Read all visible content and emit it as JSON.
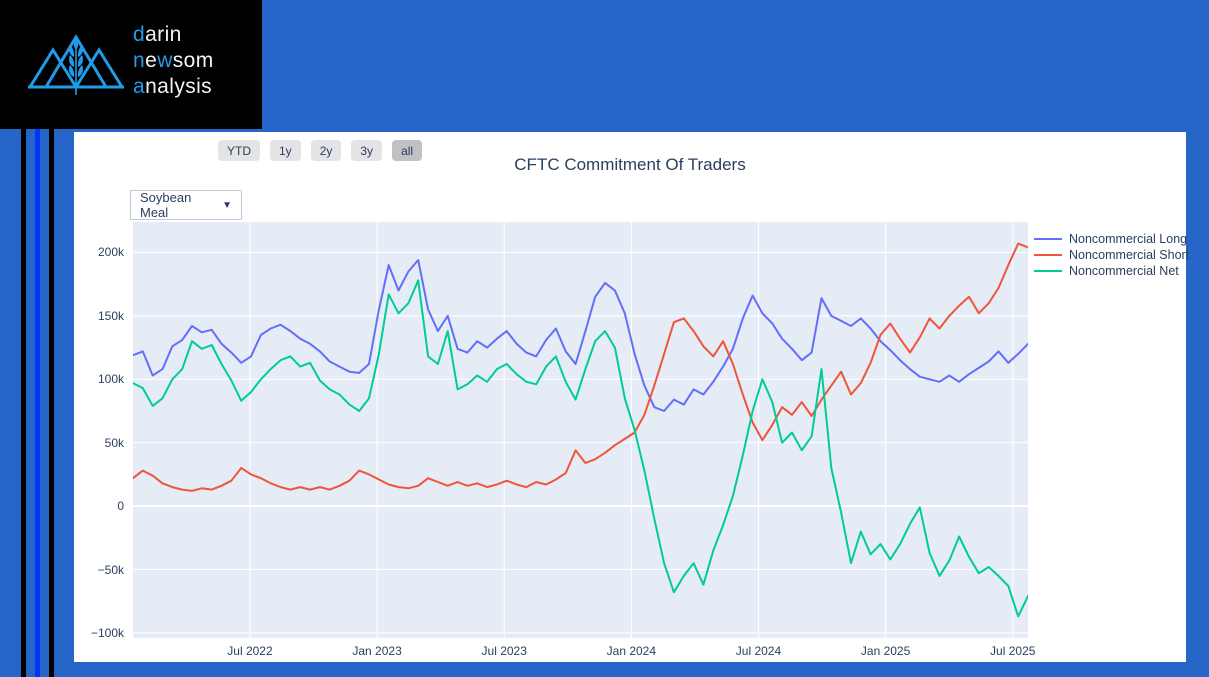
{
  "brand": {
    "accent_color": "#219CE9",
    "white_color": "#F4F4F4",
    "lines": [
      {
        "segments": [
          {
            "t": "d",
            "c": "#219CE9"
          },
          {
            "t": "arin",
            "c": "#F4F4F4"
          }
        ]
      },
      {
        "segments": [
          {
            "t": "n",
            "c": "#219CE9"
          },
          {
            "t": "e",
            "c": "#F4F4F4"
          },
          {
            "t": "w",
            "c": "#219CE9"
          },
          {
            "t": "som",
            "c": "#F4F4F4"
          }
        ]
      },
      {
        "segments": [
          {
            "t": "a",
            "c": "#219CE9"
          },
          {
            "t": "nalysis",
            "c": "#F4F4F4"
          }
        ]
      }
    ]
  },
  "layout_colors": {
    "background_blue": "#2565C8",
    "bright_stripe_blue": "#0634F4",
    "header_black": "#000000"
  },
  "toolbar": {
    "range_buttons": [
      {
        "label": "YTD",
        "selected": false
      },
      {
        "label": "1y",
        "selected": false
      },
      {
        "label": "2y",
        "selected": false
      },
      {
        "label": "3y",
        "selected": false
      },
      {
        "label": "all",
        "selected": true
      }
    ]
  },
  "controls": {
    "commodity": {
      "value": "Soybean Meal",
      "chevron": "▼"
    }
  },
  "chart_data": {
    "type": "line",
    "title": "CFTC Commitment Of Traders",
    "plot_bg": "#E5ECF6",
    "grid_color": "#FFFFFF",
    "legend_position": "right",
    "x_domain": [
      2022.04,
      2025.56
    ],
    "y_domain": [
      -104,
      224
    ],
    "x_unit": "decimal_year_weekly_cot_dates",
    "start": 2022.04,
    "step_years": 0.038681,
    "x_ticks": [
      {
        "t": 2022.5,
        "label": "Jul 2022"
      },
      {
        "t": 2023.0,
        "label": "Jan 2023"
      },
      {
        "t": 2023.5,
        "label": "Jul 2023"
      },
      {
        "t": 2024.0,
        "label": "Jan 2024"
      },
      {
        "t": 2024.5,
        "label": "Jul 2024"
      },
      {
        "t": 2025.0,
        "label": "Jan 2025"
      },
      {
        "t": 2025.5,
        "label": "Jul 2025"
      }
    ],
    "y_ticks": [
      {
        "v": 200,
        "label": "200k"
      },
      {
        "v": 150,
        "label": "150k"
      },
      {
        "v": 100,
        "label": "100k"
      },
      {
        "v": 50,
        "label": "50k"
      },
      {
        "v": 0,
        "label": "0"
      },
      {
        "v": -50,
        "label": "−50k"
      },
      {
        "v": -100,
        "label": "−100k"
      }
    ],
    "value_unit": "thousand_contracts",
    "series": [
      {
        "name": "Noncommercial Long",
        "color": "#636EFA",
        "values": [
          119,
          122,
          103,
          108,
          126,
          131,
          142,
          137,
          139,
          128,
          121,
          113,
          118,
          135,
          140,
          143,
          138,
          132,
          128,
          122,
          114,
          110,
          106,
          105,
          112,
          155,
          190,
          170,
          185,
          194,
          155,
          138,
          150,
          124,
          121,
          130,
          125,
          132,
          138,
          128,
          121,
          118,
          131,
          140,
          122,
          112,
          138,
          165,
          176,
          170,
          152,
          120,
          95,
          78,
          75,
          84,
          80,
          92,
          88,
          98,
          110,
          124,
          148,
          166,
          152,
          144,
          132,
          124,
          115,
          121,
          164,
          150,
          146,
          142,
          148,
          140,
          130,
          123,
          115,
          108,
          102,
          100,
          98,
          103,
          98,
          104,
          109,
          114,
          122,
          113,
          120,
          128
        ]
      },
      {
        "name": "Noncommercial Short",
        "color": "#EF553B",
        "values": [
          22,
          28,
          24,
          18,
          15,
          13,
          12,
          14,
          13,
          16,
          20,
          30,
          25,
          22,
          18,
          15,
          13,
          15,
          13,
          15,
          13,
          16,
          20,
          28,
          25,
          21,
          17,
          15,
          14,
          16,
          22,
          19,
          16,
          19,
          16,
          18,
          15,
          17,
          20,
          17,
          15,
          19,
          17,
          21,
          26,
          44,
          34,
          37,
          42,
          48,
          53,
          58,
          72,
          95,
          120,
          145,
          148,
          138,
          126,
          118,
          130,
          112,
          88,
          66,
          52,
          64,
          78,
          72,
          82,
          71,
          84,
          95,
          106,
          88,
          97,
          113,
          135,
          144,
          132,
          121,
          133,
          148,
          140,
          150,
          158,
          165,
          152,
          160,
          172,
          190,
          207,
          204
        ]
      },
      {
        "name": "Noncommercial Net",
        "color": "#00CC96",
        "values": [
          97,
          93,
          79,
          85,
          100,
          108,
          130,
          124,
          127,
          112,
          99,
          83,
          90,
          100,
          108,
          115,
          118,
          110,
          113,
          99,
          92,
          88,
          80,
          75,
          85,
          120,
          167,
          152,
          160,
          178,
          118,
          112,
          138,
          92,
          96,
          103,
          98,
          108,
          112,
          104,
          98,
          96,
          110,
          118,
          98,
          84,
          108,
          130,
          138,
          125,
          85,
          60,
          28,
          -10,
          -45,
          -68,
          -55,
          -45,
          -62,
          -35,
          -15,
          8,
          40,
          75,
          100,
          82,
          50,
          58,
          44,
          55,
          108,
          30,
          -5,
          -45,
          -20,
          -38,
          -30,
          -42,
          -30,
          -14,
          -1,
          -37,
          -55,
          -43,
          -24,
          -40,
          -53,
          -48,
          -55,
          -63,
          -87,
          -71
        ]
      }
    ]
  }
}
